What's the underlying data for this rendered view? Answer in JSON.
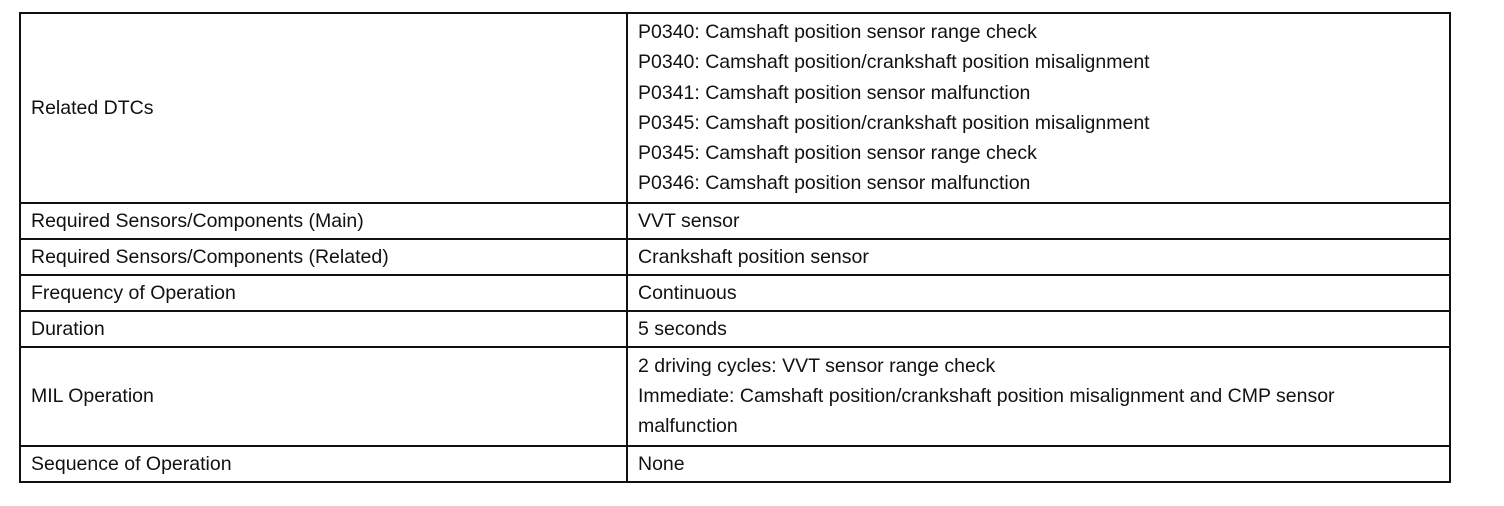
{
  "table": {
    "rows": [
      {
        "label": "Related DTCs",
        "lines": [
          "P0340: Camshaft position sensor range check",
          "P0340: Camshaft position/crankshaft position misalignment",
          "P0341: Camshaft position sensor malfunction",
          "P0345: Camshaft position/crankshaft position misalignment",
          "P0345: Camshaft position sensor range check",
          "P0346: Camshaft position sensor malfunction"
        ]
      },
      {
        "label": "Required Sensors/Components (Main)",
        "value": "VVT sensor"
      },
      {
        "label": "Required Sensors/Components (Related)",
        "value": "Crankshaft position sensor"
      },
      {
        "label": "Frequency of Operation",
        "value": "Continuous"
      },
      {
        "label": "Duration",
        "value": "5 seconds"
      },
      {
        "label": "MIL Operation",
        "lines": [
          "2 driving cycles: VVT sensor range check",
          "Immediate: Camshaft position/crankshaft position misalignment and CMP sensor malfunction"
        ]
      },
      {
        "label": "Sequence of Operation",
        "value": "None"
      }
    ]
  }
}
